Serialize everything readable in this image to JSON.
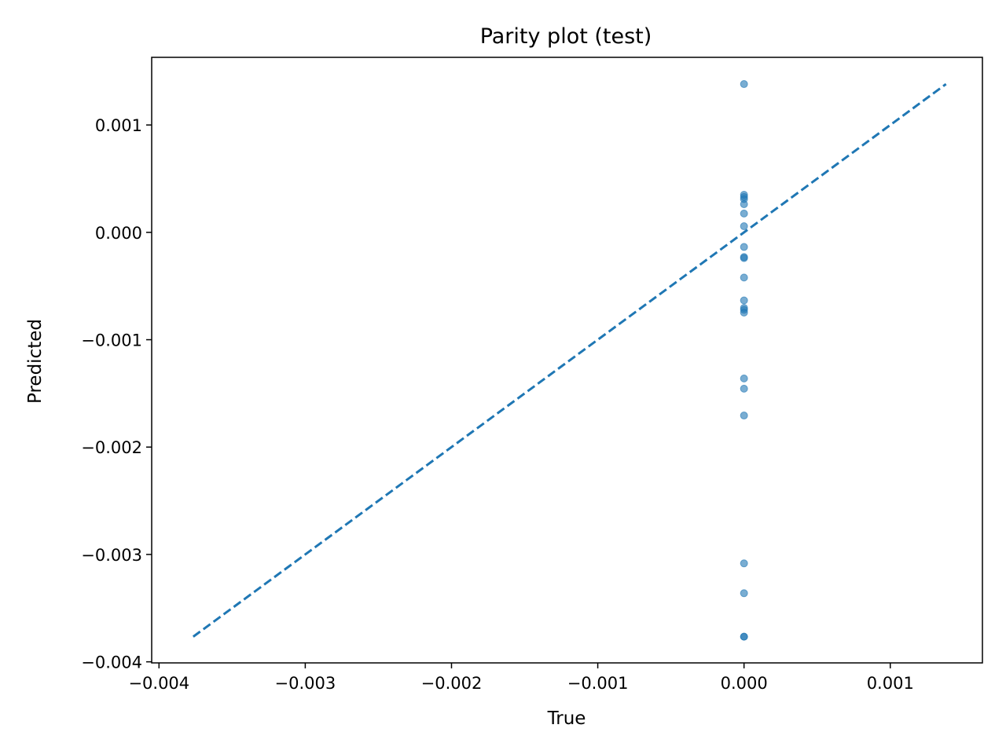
{
  "chart_data": {
    "type": "scatter",
    "title": "Parity plot (test)",
    "xlabel": "True",
    "ylabel": "Predicted",
    "xlim": [
      -0.00405,
      0.00163
    ],
    "ylim": [
      -0.00401,
      0.00163
    ],
    "xticks": [
      {
        "value": -0.004,
        "label": "−0.004"
      },
      {
        "value": -0.003,
        "label": "−0.003"
      },
      {
        "value": -0.002,
        "label": "−0.002"
      },
      {
        "value": -0.001,
        "label": "−0.001"
      },
      {
        "value": 0.0,
        "label": "0.000"
      },
      {
        "value": 0.001,
        "label": "0.001"
      }
    ],
    "yticks": [
      {
        "value": -0.004,
        "label": "−0.004"
      },
      {
        "value": -0.003,
        "label": "−0.003"
      },
      {
        "value": -0.002,
        "label": "−0.002"
      },
      {
        "value": -0.001,
        "label": "−0.001"
      },
      {
        "value": 0.0,
        "label": "0.000"
      },
      {
        "value": 0.001,
        "label": "0.001"
      }
    ],
    "grid": false,
    "colors": {
      "points": "#1f77b4",
      "reference_line": "#1f77b4"
    },
    "series": [
      {
        "kind": "points",
        "x": [
          0,
          0,
          0,
          0,
          0,
          0,
          0,
          0,
          0,
          0,
          0,
          0,
          0,
          0,
          0,
          0,
          0,
          0,
          0,
          0,
          0,
          0
        ],
        "y": [
          0.001381,
          0.00035,
          0.00033,
          0.00031,
          0.000262,
          0.000175,
          5.7e-05,
          -0.000136,
          -0.00023,
          -0.00024,
          -0.000421,
          -0.000634,
          -0.000704,
          -0.000722,
          -0.000747,
          -0.001361,
          -0.001456,
          -0.001706,
          -0.003083,
          -0.003361,
          -0.003766,
          -0.003766
        ]
      },
      {
        "kind": "reference-line",
        "style": "dashed",
        "x": [
          -0.003766,
          0.001381
        ],
        "y": [
          -0.003766,
          0.001381
        ]
      }
    ]
  }
}
